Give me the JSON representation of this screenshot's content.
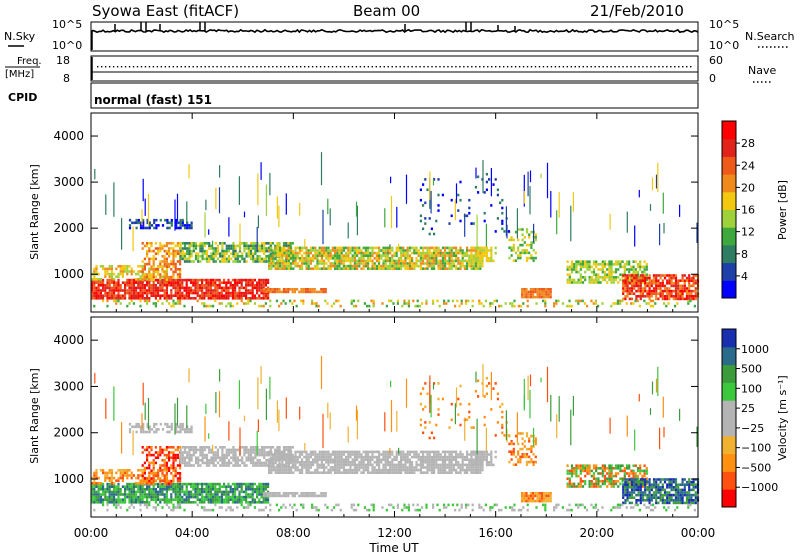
{
  "header": {
    "site": "Syowa East (fitACF)",
    "beam": "Beam 00",
    "date": "21/Feb/2010"
  },
  "colors": {
    "power_scale": [
      "#0000ff",
      "#1f3fa8",
      "#2e7d62",
      "#3da83d",
      "#9fd23a",
      "#f2c811",
      "#f08a1c",
      "#ee5a1a",
      "#e0241c",
      "#ff0000"
    ],
    "velocity_scale": [
      "#ff0000",
      "#ff5010",
      "#ff9010",
      "#f0b030",
      "#b4b4b4",
      "#b4b4b4",
      "#3cc83c",
      "#3c9c3c",
      "#2a6a8a",
      "#1830b0"
    ],
    "ground_scatter": "#b4b4b4"
  },
  "chart_data": [
    {
      "type": "line",
      "name": "status-sky-search",
      "left_label": "N.Sky",
      "right_label": "N.Search",
      "left_ticks": [
        "10^5",
        "10^0"
      ],
      "right_ticks": [
        "10^5",
        "10^0"
      ]
    },
    {
      "type": "scatter",
      "name": "status-freq-nave",
      "left_label_line1": "Freq.",
      "left_label_line2": "[MHz]",
      "right_label": "Nave",
      "left_ticks": [
        "18",
        "8"
      ],
      "right_ticks": [
        "60",
        "0"
      ],
      "ylim_freq": [
        8,
        18
      ],
      "ylim_nave": [
        0,
        60
      ]
    },
    {
      "type": "table",
      "name": "cpid",
      "label": "CPID",
      "value": "normal (fast) 151"
    },
    {
      "type": "heatmap",
      "name": "power",
      "ylabel": "Slant Range [km]",
      "yticks": [
        "1000",
        "2000",
        "3000",
        "4000"
      ],
      "ylim": [
        180,
        4500
      ],
      "colorbar_label": "Power [dB]",
      "colorbar_ticks": [
        "4",
        "8",
        "12",
        "16",
        "20",
        "24",
        "28"
      ],
      "clim": [
        0,
        32
      ]
    },
    {
      "type": "heatmap",
      "name": "velocity",
      "ylabel": "Slant Range [km]",
      "yticks": [
        "1000",
        "2000",
        "3000",
        "4000"
      ],
      "ylim": [
        180,
        4500
      ],
      "colorbar_label": "Velocity [m s⁻¹]",
      "colorbar_ticks": [
        "1000",
        "500",
        "100",
        "25",
        "−25",
        "−100",
        "−500",
        "−1000"
      ],
      "clim": [
        -1000,
        1000
      ]
    }
  ],
  "time_axis": {
    "ticks": [
      "00:00",
      "04:00",
      "08:00",
      "12:00",
      "16:00",
      "20:00",
      "00:00"
    ],
    "label": "Time UT"
  }
}
